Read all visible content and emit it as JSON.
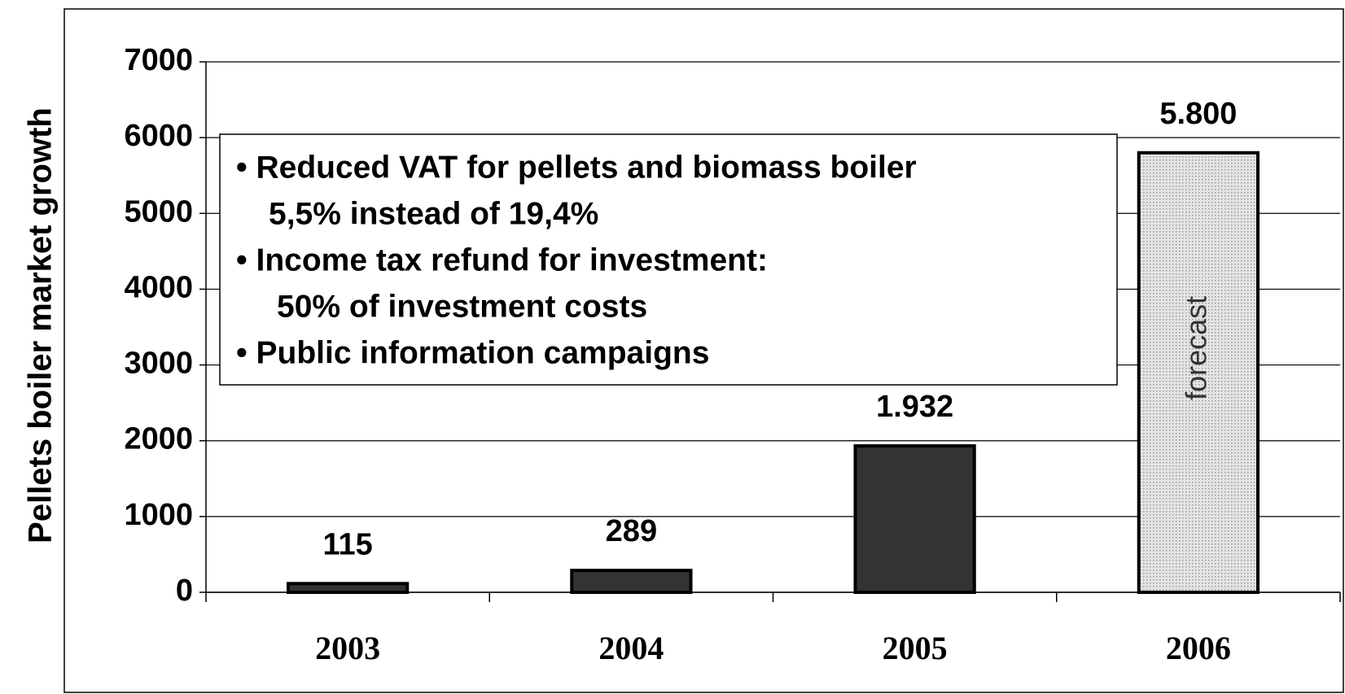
{
  "chart_data": {
    "type": "bar",
    "y_label": "Pellets boiler market growth",
    "categories": [
      "2003",
      "2004",
      "2005",
      "2006"
    ],
    "values": [
      115,
      289,
      1932,
      5800
    ],
    "value_labels": [
      "115",
      "289",
      "1.932",
      "5.800"
    ],
    "colors": [
      "#333333",
      "#333333",
      "#333333",
      "#d4d4d4"
    ],
    "ylim": [
      0,
      7000
    ],
    "yticks": [
      0,
      1000,
      2000,
      3000,
      4000,
      5000,
      6000,
      7000
    ],
    "grid": true,
    "bar_annotation": {
      "index": 3,
      "text": "forecast"
    },
    "annotation_box": [
      "• Reduced VAT for pellets and biomass boiler",
      "5,5% instead of 19,4%",
      "• Income tax refund for investment:",
      "50% of investment costs",
      "• Public information campaigns"
    ]
  }
}
